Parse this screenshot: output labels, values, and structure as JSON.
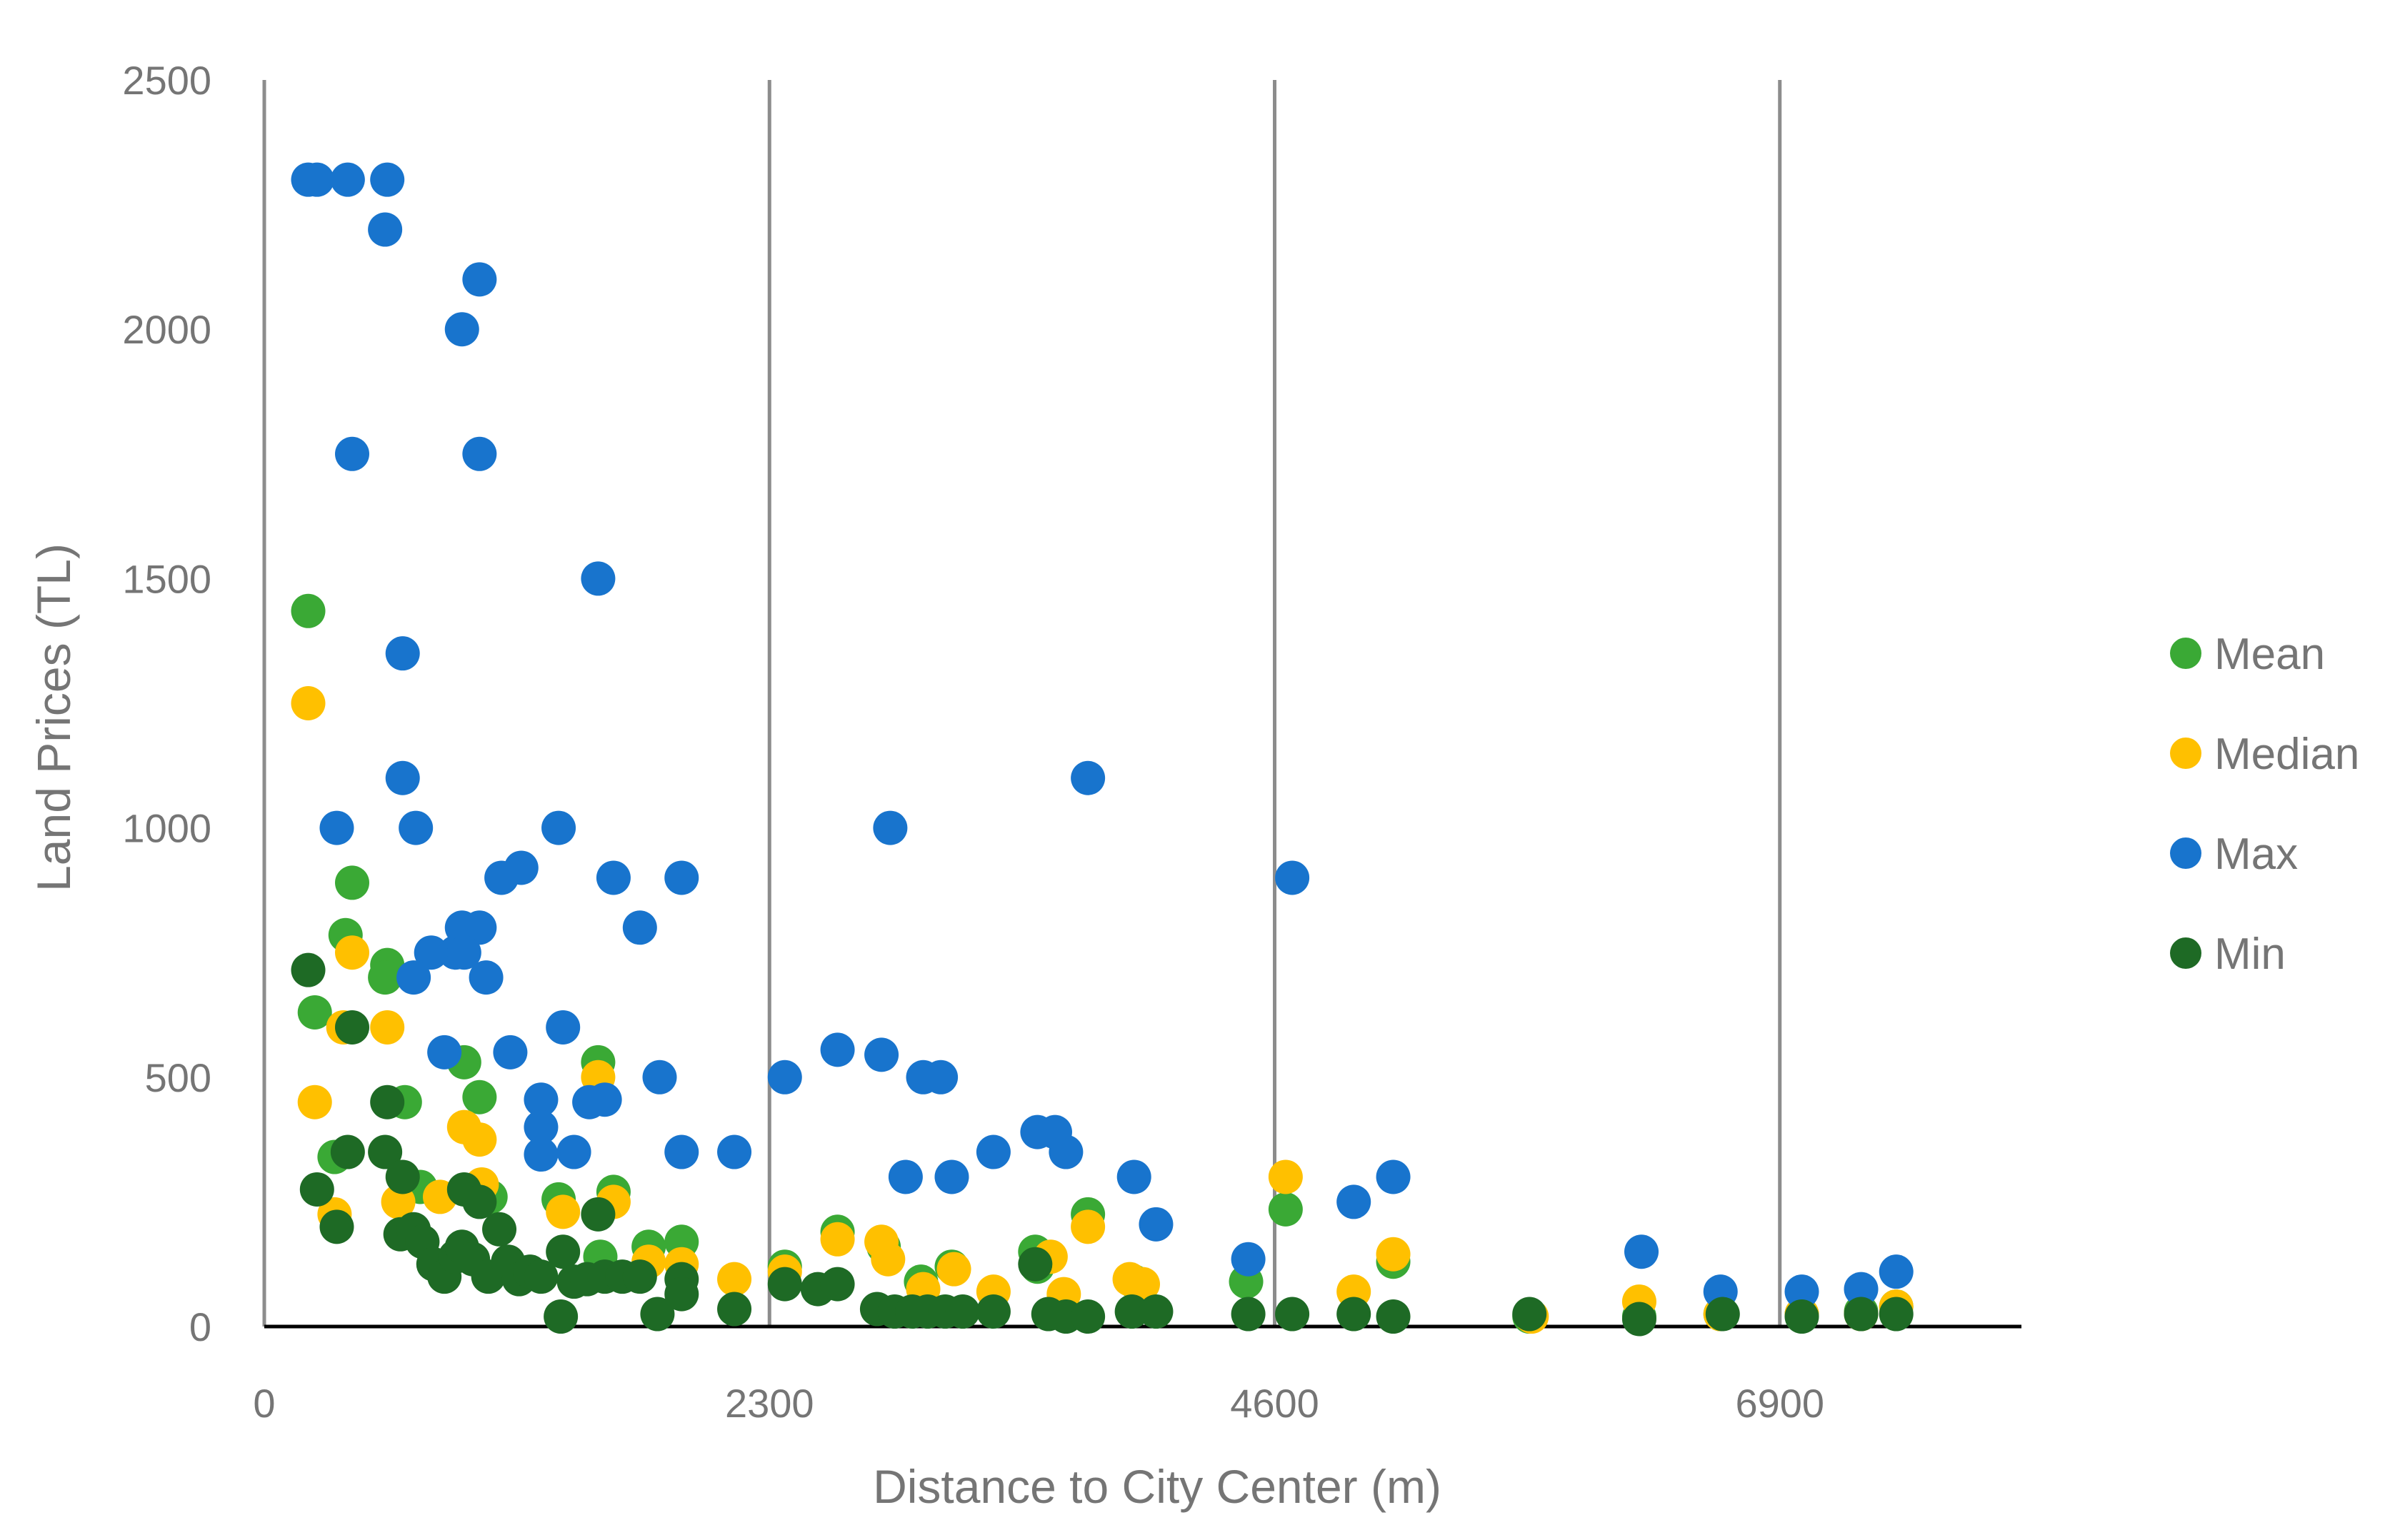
{
  "chart_data": {
    "type": "scatter",
    "title": "",
    "xlabel": "Distance to City Center (m)",
    "ylabel": "Land Prices (TL)",
    "xlim": [
      0,
      8000
    ],
    "ylim": [
      0,
      2500
    ],
    "xticks": [
      "0",
      "2300",
      "4600",
      "6900"
    ],
    "yticks": [
      "0",
      "500",
      "1000",
      "1500",
      "2000",
      "2500"
    ],
    "vertical_gridlines": [
      0,
      2300,
      4600,
      6900
    ],
    "legend_position": "right",
    "series": [
      {
        "name": "Mean",
        "color": "#3aa935",
        "points": [
          [
            200,
            1435
          ],
          [
            230,
            630
          ],
          [
            400,
            890
          ],
          [
            370,
            785
          ],
          [
            560,
            725
          ],
          [
            550,
            700
          ],
          [
            320,
            340
          ],
          [
            640,
            450
          ],
          [
            980,
            460
          ],
          [
            910,
            530
          ],
          [
            1520,
            530
          ],
          [
            710,
            280
          ],
          [
            1030,
            260
          ],
          [
            1340,
            255
          ],
          [
            1590,
            270
          ],
          [
            1750,
            160
          ],
          [
            1900,
            170
          ],
          [
            1530,
            140
          ],
          [
            2370,
            120
          ],
          [
            2610,
            190
          ],
          [
            2820,
            160
          ],
          [
            2990,
            90
          ],
          [
            3130,
            120
          ],
          [
            3510,
            150
          ],
          [
            3520,
            120
          ],
          [
            3750,
            225
          ],
          [
            3960,
            90
          ],
          [
            4470,
            90
          ],
          [
            4650,
            235
          ],
          [
            5140,
            130
          ],
          [
            5760,
            20
          ],
          [
            6260,
            20
          ],
          [
            6630,
            25
          ],
          [
            7000,
            25
          ],
          [
            7270,
            30
          ],
          [
            7430,
            40
          ]
        ]
      },
      {
        "name": "Median",
        "color": "#ffc000",
        "points": [
          [
            200,
            1250
          ],
          [
            230,
            450
          ],
          [
            400,
            750
          ],
          [
            360,
            600
          ],
          [
            560,
            600
          ],
          [
            320,
            225
          ],
          [
            610,
            250
          ],
          [
            800,
            260
          ],
          [
            910,
            400
          ],
          [
            980,
            375
          ],
          [
            990,
            285
          ],
          [
            1360,
            230
          ],
          [
            1520,
            500
          ],
          [
            1590,
            250
          ],
          [
            1750,
            130
          ],
          [
            1900,
            125
          ],
          [
            2140,
            95
          ],
          [
            2370,
            110
          ],
          [
            2610,
            175
          ],
          [
            2810,
            170
          ],
          [
            2840,
            135
          ],
          [
            3000,
            75
          ],
          [
            3140,
            115
          ],
          [
            3320,
            70
          ],
          [
            3580,
            140
          ],
          [
            3640,
            65
          ],
          [
            3750,
            200
          ],
          [
            3940,
            95
          ],
          [
            4000,
            85
          ],
          [
            4650,
            300
          ],
          [
            4960,
            70
          ],
          [
            5140,
            145
          ],
          [
            5770,
            20
          ],
          [
            6260,
            50
          ],
          [
            6630,
            25
          ],
          [
            7000,
            25
          ],
          [
            7270,
            25
          ],
          [
            7430,
            40
          ]
        ]
      },
      {
        "name": "Max",
        "color": "#1874cd",
        "points": [
          [
            200,
            2300
          ],
          [
            240,
            2300
          ],
          [
            380,
            2300
          ],
          [
            560,
            2300
          ],
          [
            550,
            2200
          ],
          [
            980,
            2100
          ],
          [
            900,
            2000
          ],
          [
            400,
            1750
          ],
          [
            980,
            1750
          ],
          [
            1520,
            1500
          ],
          [
            630,
            1350
          ],
          [
            630,
            1100
          ],
          [
            330,
            1000
          ],
          [
            690,
            1000
          ],
          [
            1340,
            1000
          ],
          [
            1170,
            920
          ],
          [
            1080,
            900
          ],
          [
            1590,
            900
          ],
          [
            1900,
            900
          ],
          [
            900,
            800
          ],
          [
            980,
            800
          ],
          [
            1710,
            800
          ],
          [
            760,
            750
          ],
          [
            870,
            750
          ],
          [
            910,
            750
          ],
          [
            680,
            700
          ],
          [
            1010,
            700
          ],
          [
            1360,
            600
          ],
          [
            820,
            550
          ],
          [
            1120,
            550
          ],
          [
            1260,
            455
          ],
          [
            1480,
            450
          ],
          [
            1550,
            455
          ],
          [
            1800,
            500
          ],
          [
            1260,
            400
          ],
          [
            1260,
            345
          ],
          [
            1410,
            350
          ],
          [
            1900,
            350
          ],
          [
            2140,
            350
          ],
          [
            2370,
            500
          ],
          [
            2610,
            555
          ],
          [
            2810,
            545
          ],
          [
            2850,
            1000
          ],
          [
            3000,
            500
          ],
          [
            3080,
            500
          ],
          [
            2920,
            300
          ],
          [
            3130,
            300
          ],
          [
            3320,
            350
          ],
          [
            3520,
            390
          ],
          [
            3600,
            390
          ],
          [
            3650,
            350
          ],
          [
            3750,
            1100
          ],
          [
            3960,
            300
          ],
          [
            4060,
            205
          ],
          [
            4480,
            135
          ],
          [
            4680,
            900
          ],
          [
            4960,
            250
          ],
          [
            5140,
            300
          ],
          [
            6270,
            150
          ],
          [
            6630,
            70
          ],
          [
            7000,
            70
          ],
          [
            7270,
            75
          ],
          [
            7430,
            110
          ]
        ]
      },
      {
        "name": "Min",
        "color": "#1e6a25",
        "points": [
          [
            200,
            715
          ],
          [
            400,
            600
          ],
          [
            560,
            450
          ],
          [
            240,
            275
          ],
          [
            330,
            200
          ],
          [
            380,
            350
          ],
          [
            550,
            350
          ],
          [
            630,
            300
          ],
          [
            620,
            185
          ],
          [
            680,
            195
          ],
          [
            720,
            170
          ],
          [
            770,
            125
          ],
          [
            820,
            100
          ],
          [
            870,
            140
          ],
          [
            900,
            160
          ],
          [
            910,
            275
          ],
          [
            950,
            135
          ],
          [
            980,
            250
          ],
          [
            1020,
            100
          ],
          [
            1070,
            195
          ],
          [
            1110,
            130
          ],
          [
            1160,
            95
          ],
          [
            1210,
            110
          ],
          [
            1260,
            100
          ],
          [
            1350,
            20
          ],
          [
            1360,
            150
          ],
          [
            1410,
            90
          ],
          [
            1470,
            95
          ],
          [
            1520,
            225
          ],
          [
            1550,
            100
          ],
          [
            1630,
            100
          ],
          [
            1710,
            100
          ],
          [
            1790,
            25
          ],
          [
            1900,
            95
          ],
          [
            1900,
            65
          ],
          [
            2140,
            35
          ],
          [
            2370,
            85
          ],
          [
            2520,
            75
          ],
          [
            2610,
            85
          ],
          [
            2790,
            35
          ],
          [
            2870,
            30
          ],
          [
            2950,
            30
          ],
          [
            3020,
            30
          ],
          [
            3100,
            30
          ],
          [
            3180,
            30
          ],
          [
            3320,
            30
          ],
          [
            3510,
            125
          ],
          [
            3570,
            25
          ],
          [
            3650,
            20
          ],
          [
            3750,
            20
          ],
          [
            3950,
            30
          ],
          [
            4060,
            30
          ],
          [
            4480,
            25
          ],
          [
            4680,
            25
          ],
          [
            4960,
            25
          ],
          [
            5140,
            20
          ],
          [
            5760,
            25
          ],
          [
            6260,
            15
          ],
          [
            6640,
            25
          ],
          [
            7000,
            20
          ],
          [
            7270,
            25
          ],
          [
            7430,
            25
          ]
        ]
      }
    ]
  }
}
